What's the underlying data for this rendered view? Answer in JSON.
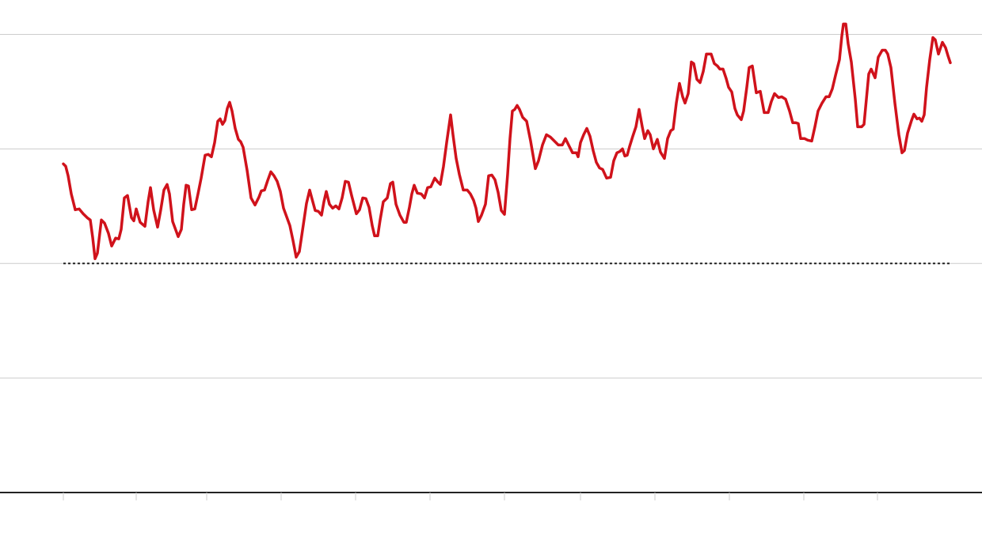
{
  "chart_data": {
    "type": "line",
    "xlim": [
      0,
      1240
    ],
    "ylim": [
      0,
      4.3
    ],
    "xticks": [
      80,
      172,
      261,
      355,
      449,
      543,
      637,
      733,
      827,
      921,
      1015,
      1108
    ],
    "yticks": [
      1,
      2,
      3,
      4
    ],
    "grid": true,
    "reference_line": 2,
    "series": [
      {
        "color": "#d0121b",
        "x": [
          80,
          83,
          86,
          90,
          95,
          100,
          105,
          110,
          114,
          117,
          120,
          123,
          128,
          132,
          137,
          141,
          146,
          150,
          153,
          157,
          161,
          166,
          169,
          172,
          177,
          183,
          187,
          190,
          194,
          199,
          203,
          207,
          211,
          214,
          218,
          225,
          229,
          232,
          235,
          238,
          242,
          246,
          250,
          254,
          259,
          263,
          267,
          271,
          275,
          278,
          281,
          284,
          287,
          290,
          293,
          297,
          301,
          304,
          307,
          312,
          317,
          322,
          327,
          330,
          334,
          338,
          342,
          346,
          350,
          354,
          358,
          362,
          366,
          370,
          374,
          378,
          382,
          387,
          391,
          395,
          398,
          402,
          406,
          409,
          412,
          416,
          420,
          424,
          428,
          432,
          436,
          440,
          444,
          450,
          454,
          458,
          462,
          466,
          470,
          473,
          477,
          480,
          484,
          489,
          493,
          496,
          500,
          505,
          510,
          513,
          517,
          520,
          523,
          527,
          532,
          536,
          540,
          544,
          549,
          553,
          556,
          560,
          564,
          569,
          572,
          576,
          580,
          585,
          590,
          594,
          598,
          601,
          604,
          608,
          613,
          617,
          621,
          625,
          629,
          633,
          637,
          641,
          644,
          647,
          650,
          653,
          656,
          660,
          665,
          670,
          676,
          680,
          685,
          690,
          695,
          700,
          705,
          710,
          714,
          718,
          723,
          728,
          730,
          733,
          737,
          741,
          745,
          749,
          753,
          757,
          761,
          766,
          771,
          775,
          779,
          783,
          786,
          789,
          792,
          795,
          799,
          803,
          807,
          811,
          814,
          818,
          821,
          825,
          830,
          834,
          839,
          843,
          847,
          850,
          854,
          858,
          862,
          865,
          869,
          873,
          876,
          880,
          884,
          888,
          892,
          898,
          902,
          906,
          909,
          913,
          917,
          920,
          924,
          928,
          931,
          936,
          939,
          943,
          946,
          950,
          955,
          960,
          965,
          970,
          974,
          978,
          983,
          987,
          992,
          997,
          1001,
          1005,
          1008,
          1011,
          1016,
          1020,
          1025,
          1029,
          1033,
          1038,
          1043,
          1047,
          1051,
          1055,
          1060,
          1063,
          1065,
          1068,
          1071,
          1075,
          1080,
          1083,
          1088,
          1091,
          1094,
          1097,
          1100,
          1105,
          1109,
          1114,
          1118,
          1121,
          1125,
          1130,
          1135,
          1139,
          1142,
          1146,
          1151,
          1154,
          1158,
          1161,
          1164,
          1167,
          1170,
          1174,
          1178,
          1181,
          1185,
          1190,
          1194,
          1197,
          1200
        ],
        "values": [
          2.869,
          2.848,
          2.766,
          2.607,
          2.469,
          2.476,
          2.434,
          2.4,
          2.379,
          2.228,
          2.041,
          2.09,
          2.379,
          2.352,
          2.262,
          2.152,
          2.221,
          2.214,
          2.297,
          2.572,
          2.593,
          2.4,
          2.372,
          2.476,
          2.359,
          2.324,
          2.538,
          2.662,
          2.469,
          2.317,
          2.469,
          2.641,
          2.69,
          2.607,
          2.366,
          2.234,
          2.297,
          2.517,
          2.683,
          2.676,
          2.469,
          2.476,
          2.607,
          2.745,
          2.945,
          2.952,
          2.931,
          3.055,
          3.241,
          3.262,
          3.214,
          3.248,
          3.352,
          3.407,
          3.331,
          3.179,
          3.083,
          3.062,
          3.014,
          2.814,
          2.572,
          2.51,
          2.579,
          2.634,
          2.641,
          2.724,
          2.8,
          2.766,
          2.717,
          2.628,
          2.483,
          2.407,
          2.331,
          2.2,
          2.055,
          2.103,
          2.29,
          2.524,
          2.641,
          2.538,
          2.462,
          2.455,
          2.421,
          2.538,
          2.628,
          2.517,
          2.483,
          2.503,
          2.476,
          2.572,
          2.717,
          2.71,
          2.593,
          2.434,
          2.469,
          2.572,
          2.566,
          2.49,
          2.331,
          2.241,
          2.241,
          2.379,
          2.538,
          2.572,
          2.697,
          2.71,
          2.517,
          2.421,
          2.359,
          2.359,
          2.49,
          2.607,
          2.683,
          2.614,
          2.607,
          2.572,
          2.662,
          2.669,
          2.745,
          2.71,
          2.69,
          2.848,
          3.055,
          3.297,
          3.124,
          2.917,
          2.779,
          2.641,
          2.641,
          2.607,
          2.552,
          2.483,
          2.366,
          2.421,
          2.517,
          2.766,
          2.772,
          2.731,
          2.621,
          2.462,
          2.428,
          2.779,
          3.09,
          3.331,
          3.345,
          3.379,
          3.345,
          3.276,
          3.241,
          3.069,
          2.828,
          2.897,
          3.034,
          3.124,
          3.103,
          3.069,
          3.034,
          3.034,
          3.09,
          3.034,
          2.966,
          2.966,
          2.931,
          3.055,
          3.124,
          3.179,
          3.11,
          2.986,
          2.883,
          2.834,
          2.821,
          2.745,
          2.752,
          2.897,
          2.966,
          2.979,
          3.0,
          2.938,
          2.945,
          3.021,
          3.11,
          3.193,
          3.345,
          3.193,
          3.09,
          3.159,
          3.124,
          3.0,
          3.083,
          2.972,
          2.917,
          3.09,
          3.159,
          3.172,
          3.4,
          3.572,
          3.455,
          3.4,
          3.483,
          3.759,
          3.745,
          3.607,
          3.579,
          3.676,
          3.828,
          3.828,
          3.745,
          3.724,
          3.697,
          3.697,
          3.614,
          3.538,
          3.497,
          3.352,
          3.297,
          3.255,
          3.331,
          3.538,
          3.71,
          3.724,
          3.49,
          3.503,
          3.317,
          3.317,
          3.414,
          3.483,
          3.448,
          3.455,
          3.434,
          3.331,
          3.228,
          3.228,
          3.221,
          3.09,
          3.09,
          3.076,
          3.069,
          3.193,
          3.331,
          3.4,
          3.455,
          3.455,
          3.524,
          3.641,
          3.779,
          3.986,
          4.09,
          4.09,
          3.917,
          3.759,
          3.434,
          3.193,
          3.193,
          3.214,
          3.434,
          3.655,
          3.697,
          3.621,
          3.8,
          3.862,
          3.862,
          3.828,
          3.71,
          3.4,
          3.124,
          2.966,
          2.986,
          3.138,
          3.248,
          3.303,
          3.262,
          3.269,
          3.241,
          3.297,
          3.538,
          3.779,
          3.972,
          3.952,
          3.828,
          3.931,
          3.883,
          3.814,
          3.752
        ]
      }
    ]
  }
}
